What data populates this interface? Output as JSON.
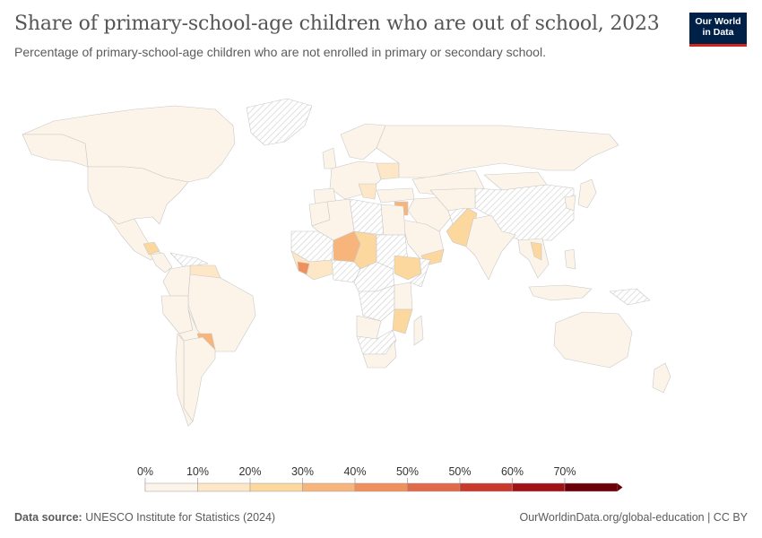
{
  "header": {
    "title": "Share of primary-school-age children who are out of school, 2023",
    "subtitle": "Percentage of primary-school-age children who are not enrolled in primary or secondary school.",
    "logo_line1": "Our World",
    "logo_line2": "in Data"
  },
  "legend": {
    "ticks": [
      "0%",
      "10%",
      "20%",
      "30%",
      "40%",
      "50%",
      "50%",
      "60%",
      "70%"
    ],
    "colors": [
      "#fdf4e9",
      "#fde7c7",
      "#fcd79e",
      "#f7b57c",
      "#f0905d",
      "#e06a4a",
      "#c93a2c",
      "#a11217",
      "#6b0009"
    ]
  },
  "map_colors": {
    "no_data_hatch": "#d8d8d8",
    "border": "#c9c9c9"
  },
  "footer": {
    "source_label": "Data source:",
    "source_text": "UNESCO Institute for Statistics (2024)",
    "url": "OurWorldinData.org/global-education | CC BY"
  }
}
